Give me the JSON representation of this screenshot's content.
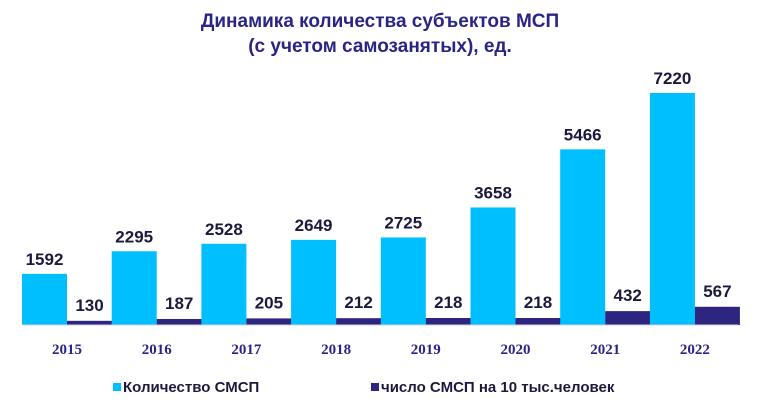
{
  "chart_data": {
    "type": "bar",
    "title": [
      "Динамика количества субъектов МСП",
      "(с учетом самозанятых), ед."
    ],
    "categories": [
      "2015",
      "2016",
      "2017",
      "2018",
      "2019",
      "2020",
      "2021",
      "2022"
    ],
    "series": [
      {
        "name": "Количество СМСП",
        "color": "#00bfff",
        "values": [
          1592,
          2295,
          2528,
          2649,
          2725,
          3658,
          5466,
          7220
        ]
      },
      {
        "name": "число СМСП на 10 тыс.человек",
        "color": "#2e2580",
        "values": [
          130,
          187,
          205,
          212,
          218,
          218,
          432,
          567
        ]
      }
    ],
    "ylim": [
      0,
      7220
    ],
    "grid": false,
    "legend_position": "bottom"
  }
}
